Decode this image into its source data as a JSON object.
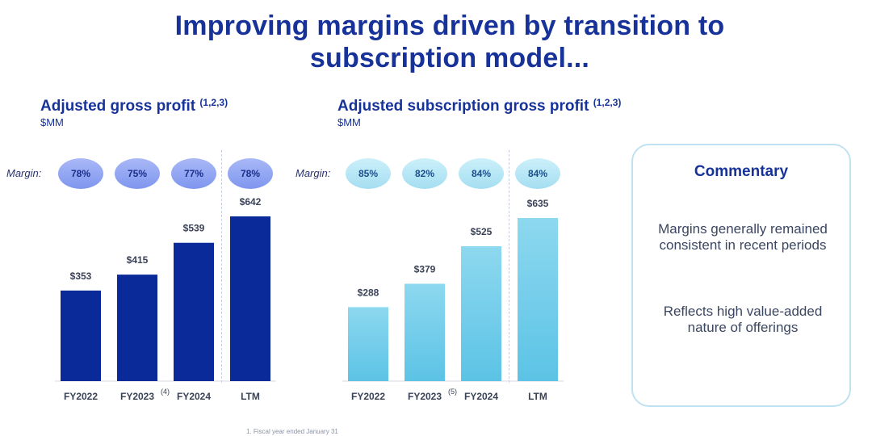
{
  "title": {
    "line1": "Improving margins driven by transition to",
    "line2": "subscription model..."
  },
  "chart_data": [
    {
      "type": "bar",
      "title": "Adjusted gross profit",
      "title_footnote": "(1,2,3)",
      "unit": "$MM",
      "margin_label": "Margin:",
      "categories": [
        "FY2022",
        "FY2023",
        "FY2024",
        "LTM"
      ],
      "category_footnotes": [
        "",
        "(4)",
        "",
        ""
      ],
      "values": [
        353,
        415,
        539,
        642
      ],
      "value_labels": [
        "$353",
        "$415",
        "$539",
        "$642"
      ],
      "margins": [
        "78%",
        "75%",
        "77%",
        "78%"
      ],
      "ylim": [
        0,
        642
      ],
      "bar_color": "#0b2a9a",
      "pill_color": "#8fa4f2"
    },
    {
      "type": "bar",
      "title": "Adjusted subscription gross profit",
      "title_footnote": "(1,2,3)",
      "unit": "$MM",
      "margin_label": "Margin:",
      "categories": [
        "FY2022",
        "FY2023",
        "FY2024",
        "LTM"
      ],
      "category_footnotes": [
        "",
        "(5)",
        "",
        ""
      ],
      "values": [
        288,
        379,
        525,
        635
      ],
      "value_labels": [
        "$288",
        "$379",
        "$525",
        "$635"
      ],
      "margins": [
        "85%",
        "82%",
        "84%",
        "84%"
      ],
      "ylim": [
        0,
        635
      ],
      "bar_color": "#6fcdea",
      "pill_color": "#b4e6f5"
    }
  ],
  "commentary": {
    "title": "Commentary",
    "point1": "Margins generally remained consistent in recent periods",
    "point2": "Reflects high value-added nature of offerings"
  },
  "footnote": "1. Fiscal year ended January 31"
}
